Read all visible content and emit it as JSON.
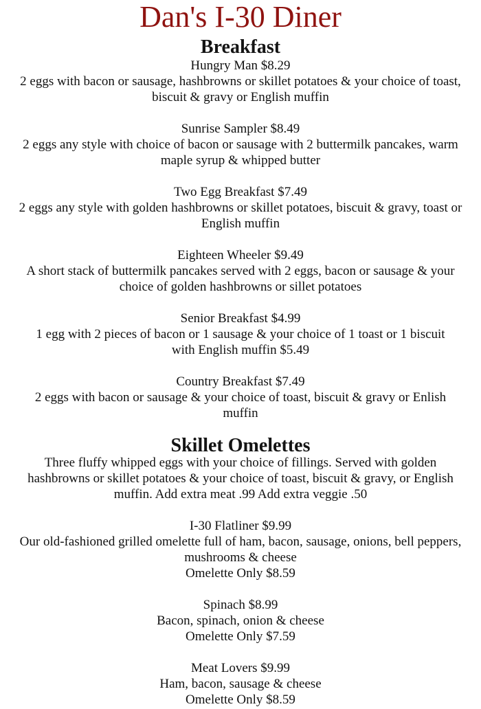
{
  "page": {
    "title": "Dan's I-30 Diner",
    "title_color": "#8f1310",
    "body_text_color": "#111111"
  },
  "sections": [
    {
      "header": "Breakfast",
      "items": [
        {
          "name": "Hungry Man $8.29",
          "lines": [
            "2 eggs with bacon or sausage, hashbrowns or skillet potatoes & your choice of toast,",
            "biscuit & gravy or English muffin"
          ]
        },
        {
          "name": "Sunrise Sampler $8.49",
          "lines": [
            "2 eggs any style with choice of bacon or sausage with 2 buttermilk pancakes, warm",
            "maple syrup & whipped butter"
          ]
        },
        {
          "name": "Two Egg Breakfast $7.49",
          "lines": [
            "2 eggs any style with golden hashbrowns or skillet potatoes, biscuit & gravy, toast or",
            "English muffin"
          ]
        },
        {
          "name": "Eighteen Wheeler $9.49",
          "lines": [
            "A short stack of buttermilk pancakes served with 2 eggs, bacon or sausage & your",
            "choice of golden hashbrowns or sillet potatoes"
          ]
        },
        {
          "name": "Senior Breakfast $4.99",
          "lines": [
            "1 egg with 2 pieces of bacon or 1 sausage & your choice of 1 toast or 1 biscuit",
            "with English muffin $5.49"
          ]
        },
        {
          "name": "Country Breakfast $7.49",
          "lines": [
            "2 eggs with bacon or sausage & your choice of toast, biscuit & gravy or Enlish",
            "muffin"
          ]
        }
      ]
    },
    {
      "header": "Skillet Omelettes",
      "intro_lines": [
        "Three fluffy whipped eggs with your choice of fillings. Served with golden",
        "hashbrowns or skillet potatoes & your choice of toast, biscuit & gravy, or English",
        "muffin. Add extra meat .99 Add extra veggie .50"
      ],
      "items": [
        {
          "name": "I-30 Flatliner $9.99",
          "lines": [
            "Our old-fashioned grilled omelette full of ham, bacon, sausage, onions, bell peppers,",
            "mushrooms & cheese",
            "Omelette Only $8.59"
          ]
        },
        {
          "name": "Spinach $8.99",
          "lines": [
            "Bacon, spinach, onion & cheese",
            "Omelette Only $7.59"
          ]
        },
        {
          "name": "Meat Lovers $9.99",
          "lines": [
            "Ham, bacon, sausage & cheese",
            "Omelette Only $8.59"
          ]
        }
      ]
    }
  ]
}
